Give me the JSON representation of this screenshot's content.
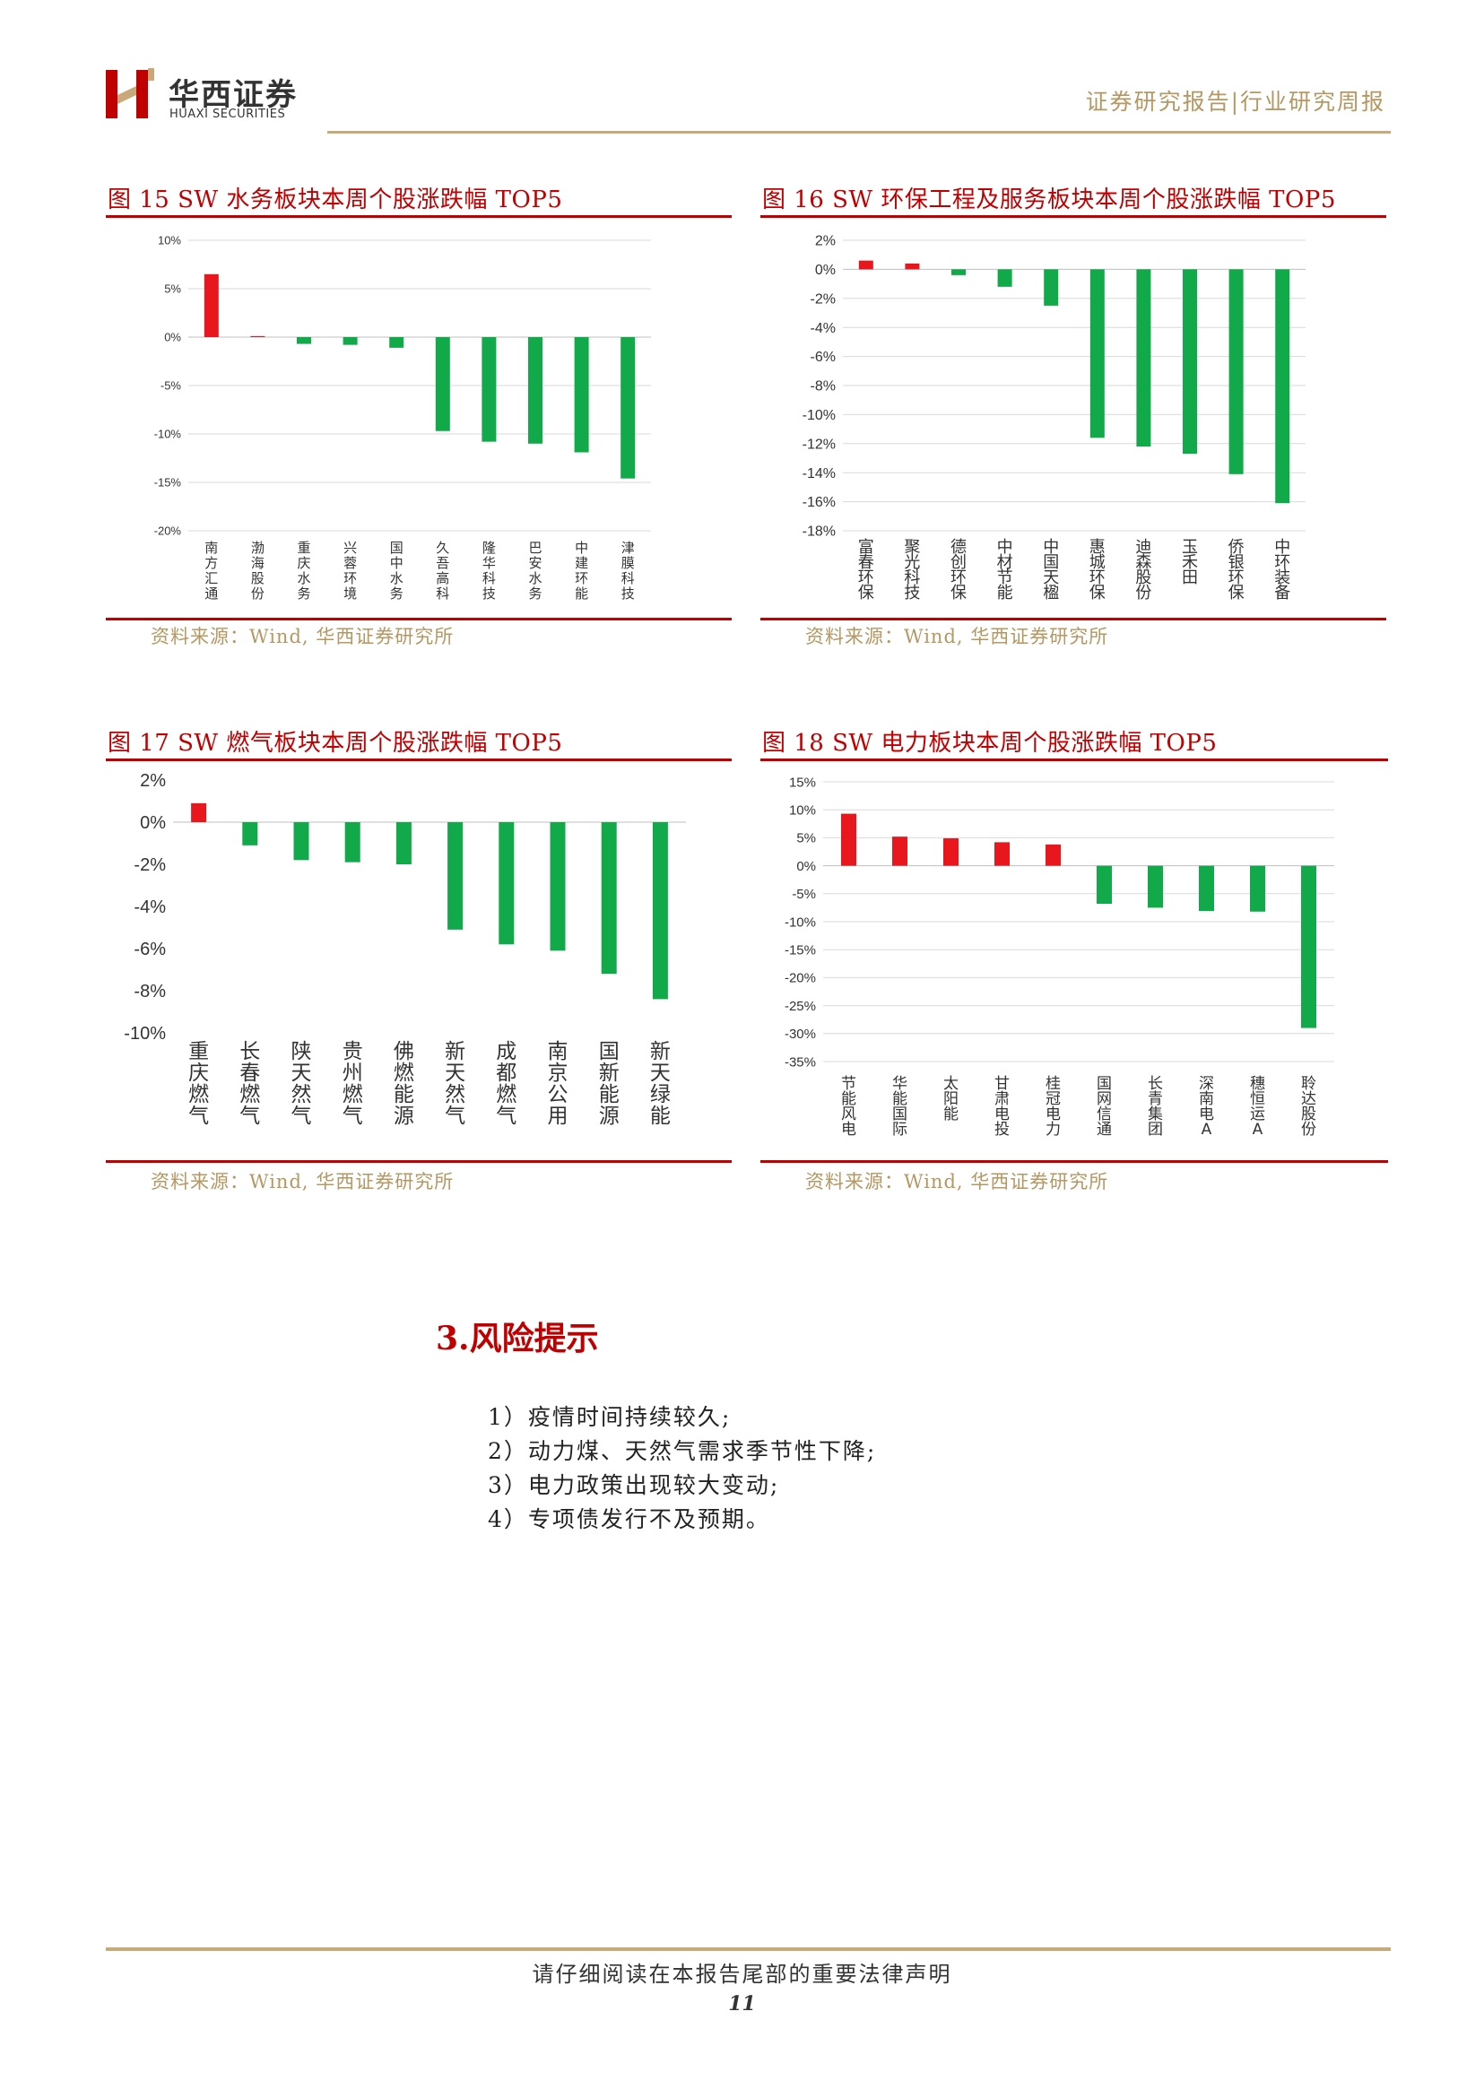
{
  "header": {
    "logo_cn": "华西证券",
    "logo_en": "HUAXI SECURITIES",
    "report_type": "证券研究报告|行业研究周报"
  },
  "colors": {
    "up": "#e8171d",
    "down": "#12a94a",
    "accent": "#c00000",
    "gold": "#b59762"
  },
  "charts": [
    {
      "title": "图 15 SW 水务板块本周个股涨跌幅 TOP5",
      "source": "资料来源：Wind, 华西证券研究所"
    },
    {
      "title": "图 16 SW 环保工程及服务板块本周个股涨跌幅 TOP5",
      "source": "资料来源：Wind, 华西证券研究所"
    },
    {
      "title": "图 17 SW 燃气板块本周个股涨跌幅 TOP5",
      "source": "资料来源：Wind, 华西证券研究所"
    },
    {
      "title": "图 18 SW 电力板块本周个股涨跌幅 TOP5",
      "source": "资料来源：Wind, 华西证券研究所"
    }
  ],
  "chart_data": [
    {
      "type": "bar",
      "title": "图 15 SW 水务板块本周个股涨跌幅 TOP5",
      "categories": [
        "南方汇通",
        "渤海股份",
        "重庆水务",
        "兴蓉环境",
        "国中水务",
        "久吾高科",
        "隆华科技",
        "巴安水务",
        "中建环能",
        "津膜科技"
      ],
      "values": [
        6.5,
        0.1,
        -0.7,
        -0.8,
        -1.1,
        -9.7,
        -10.8,
        -11.0,
        -11.9,
        -14.6
      ],
      "ylim": [
        -20,
        10
      ],
      "yticks": [
        10,
        5,
        0,
        -5,
        -10,
        -15,
        -20
      ],
      "tick_format": "{v}%",
      "grid": true
    },
    {
      "type": "bar",
      "title": "图 16 SW 环保工程及服务板块本周个股涨跌幅 TOP5",
      "categories": [
        "富春环保",
        "聚光科技",
        "德创环保",
        "中材节能",
        "中国天楹",
        "惠城环保",
        "迪森股份",
        "玉禾田",
        "侨银环保",
        "中环装备"
      ],
      "values": [
        0.6,
        0.4,
        -0.4,
        -1.2,
        -2.5,
        -11.6,
        -12.2,
        -12.7,
        -14.1,
        -16.1
      ],
      "ylim": [
        -18,
        2
      ],
      "yticks": [
        2,
        0,
        -2,
        -4,
        -6,
        -8,
        -10,
        -12,
        -14,
        -16,
        -18
      ],
      "tick_format": "{v}%",
      "grid": true
    },
    {
      "type": "bar",
      "title": "图 17 SW 燃气板块本周个股涨跌幅 TOP5",
      "categories": [
        "重庆燃气",
        "长春燃气",
        "陕天然气",
        "贵州燃气",
        "佛燃能源",
        "新天然气",
        "成都燃气",
        "南京公用",
        "国新能源",
        "新天绿能"
      ],
      "values": [
        0.9,
        -1.1,
        -1.8,
        -1.9,
        -2.0,
        -5.1,
        -5.8,
        -6.1,
        -7.2,
        -8.4
      ],
      "ylim": [
        -10,
        2
      ],
      "yticks": [
        2,
        0,
        -2,
        -4,
        -6,
        -8,
        -10
      ],
      "tick_format": "{v}%",
      "grid": false
    },
    {
      "type": "bar",
      "title": "图 18 SW 电力板块本周个股涨跌幅 TOP5",
      "categories": [
        "节能风电",
        "华能国际",
        "太阳能",
        "甘肃电投",
        "桂冠电力",
        "国网信通",
        "长青集团",
        "深南电A",
        "穗恒运A",
        "聆达股份"
      ],
      "values": [
        9.3,
        5.2,
        4.9,
        4.2,
        3.8,
        -6.8,
        -7.5,
        -8.1,
        -8.2,
        -29.0
      ],
      "ylim": [
        -35,
        15
      ],
      "yticks": [
        15,
        10,
        5,
        0,
        -5,
        -10,
        -15,
        -20,
        -25,
        -30,
        -35
      ],
      "tick_format": "{v}%",
      "grid": true
    }
  ],
  "risk": {
    "title": "3.风险提示",
    "items": [
      "1）疫情时间持续较久;",
      "2）动力煤、天然气需求季节性下降;",
      "3）电力政策出现较大变动;",
      "4）专项债发行不及预期。"
    ]
  },
  "footer": {
    "notice": "请仔细阅读在本报告尾部的重要法律声明",
    "page": "11"
  }
}
